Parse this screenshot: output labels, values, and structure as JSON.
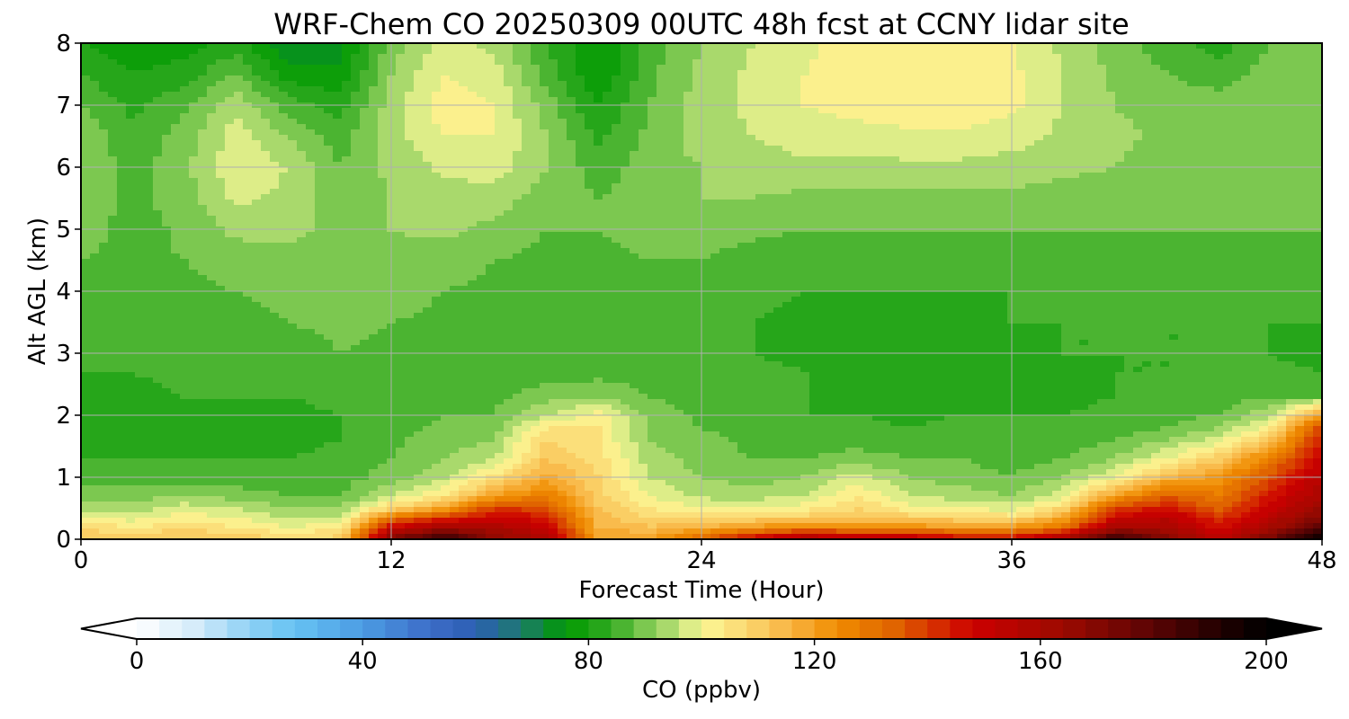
{
  "chart_data": {
    "type": "heatmap",
    "title": "WRF-Chem CO  20250309 00UTC 48h fcst at CCNY lidar site",
    "xlabel": "Forecast Time (Hour)",
    "ylabel": "Alt AGL (km)",
    "xlim": [
      0,
      48
    ],
    "ylim": [
      0,
      8
    ],
    "x_ticks": [
      0,
      12,
      24,
      36,
      48
    ],
    "y_ticks": [
      0,
      1,
      2,
      3,
      4,
      5,
      6,
      7,
      8
    ],
    "grid": true,
    "colorbar": {
      "label": "CO  (ppbv)",
      "range": [
        0,
        200
      ],
      "ticks": [
        0,
        40,
        80,
        120,
        160,
        200
      ],
      "extend": "both",
      "stops": [
        {
          "v": 0,
          "c": "#ffffff"
        },
        {
          "v": 10,
          "c": "#d6ecfa"
        },
        {
          "v": 20,
          "c": "#8fd0f5"
        },
        {
          "v": 28,
          "c": "#66c2f2"
        },
        {
          "v": 40,
          "c": "#4b9ce3"
        },
        {
          "v": 52,
          "c": "#3d6cc7"
        },
        {
          "v": 60,
          "c": "#2b5fb3"
        },
        {
          "v": 68,
          "c": "#1d7a6e"
        },
        {
          "v": 76,
          "c": "#009a00"
        },
        {
          "v": 84,
          "c": "#33aa22"
        },
        {
          "v": 90,
          "c": "#7cc850"
        },
        {
          "v": 96,
          "c": "#bfe27a"
        },
        {
          "v": 100,
          "c": "#fbf896"
        },
        {
          "v": 108,
          "c": "#fbd770"
        },
        {
          "v": 116,
          "c": "#f8b240"
        },
        {
          "v": 124,
          "c": "#f08c00"
        },
        {
          "v": 134,
          "c": "#e06400"
        },
        {
          "v": 148,
          "c": "#cc0000"
        },
        {
          "v": 164,
          "c": "#9c0a00"
        },
        {
          "v": 180,
          "c": "#5a0404"
        },
        {
          "v": 192,
          "c": "#200000"
        },
        {
          "v": 200,
          "c": "#000000"
        }
      ]
    },
    "field": {
      "x": [
        0,
        2,
        4,
        6,
        8,
        10,
        12,
        14,
        16,
        18,
        20,
        22,
        24,
        26,
        28,
        30,
        32,
        34,
        36,
        38,
        40,
        42,
        44,
        46,
        48
      ],
      "y": [
        0,
        0.1,
        0.2,
        0.35,
        0.5,
        0.7,
        1.0,
        1.3,
        1.6,
        1.8,
        2.0,
        2.3,
        2.7,
        3.0,
        3.5,
        4.0,
        4.5,
        5.0,
        5.5,
        6.0,
        6.5,
        7.0,
        7.5,
        8.0
      ],
      "z": [
        [
          112,
          110,
          112,
          110,
          108,
          110,
          170,
          192,
          165,
          160,
          120,
          120,
          135,
          150,
          160,
          155,
          155,
          150,
          150,
          160,
          190,
          170,
          155,
          175,
          200
        ],
        [
          110,
          108,
          110,
          108,
          104,
          106,
          160,
          175,
          165,
          155,
          118,
          116,
          125,
          135,
          145,
          140,
          140,
          135,
          135,
          145,
          175,
          165,
          150,
          165,
          190
        ],
        [
          106,
          104,
          106,
          104,
          100,
          102,
          148,
          160,
          158,
          150,
          116,
          112,
          116,
          120,
          125,
          122,
          122,
          120,
          120,
          130,
          160,
          160,
          145,
          160,
          180
        ],
        [
          100,
          98,
          102,
          100,
          96,
          96,
          130,
          140,
          150,
          145,
          114,
          108,
          108,
          108,
          110,
          112,
          110,
          108,
          106,
          118,
          148,
          155,
          140,
          155,
          170
        ],
        [
          95,
          94,
          98,
          96,
          92,
          92,
          108,
          120,
          140,
          138,
          112,
          104,
          100,
          100,
          102,
          108,
          102,
          100,
          98,
          108,
          140,
          145,
          135,
          150,
          165
        ],
        [
          90,
          90,
          92,
          90,
          88,
          88,
          96,
          104,
          120,
          128,
          110,
          100,
          95,
          94,
          96,
          104,
          96,
          94,
          92,
          98,
          120,
          135,
          128,
          145,
          160
        ],
        [
          86,
          86,
          86,
          86,
          85,
          86,
          90,
          95,
          105,
          118,
          108,
          96,
          92,
          90,
          92,
          98,
          92,
          90,
          88,
          92,
          100,
          115,
          122,
          138,
          155
        ],
        [
          84,
          84,
          84,
          84,
          84,
          85,
          88,
          92,
          96,
          112,
          106,
          94,
          90,
          88,
          88,
          90,
          88,
          88,
          86,
          88,
          92,
          100,
          110,
          128,
          150
        ],
        [
          83,
          83,
          83,
          83,
          83,
          84,
          87,
          90,
          92,
          108,
          104,
          92,
          89,
          87,
          86,
          86,
          86,
          86,
          85,
          86,
          88,
          92,
          98,
          112,
          145
        ],
        [
          83,
          83,
          83,
          83,
          83,
          84,
          86,
          89,
          90,
          104,
          104,
          92,
          88,
          86,
          85,
          85,
          84,
          85,
          85,
          85,
          86,
          88,
          92,
          102,
          140
        ],
        [
          83,
          83,
          83,
          83,
          83,
          84,
          86,
          88,
          88,
          96,
          102,
          90,
          87,
          86,
          84,
          84,
          83,
          84,
          84,
          84,
          85,
          86,
          88,
          95,
          122
        ],
        [
          83,
          83,
          84,
          84,
          84,
          85,
          86,
          87,
          87,
          90,
          92,
          88,
          86,
          85,
          84,
          83,
          82,
          83,
          83,
          83,
          84,
          85,
          86,
          88,
          88
        ],
        [
          84,
          84,
          85,
          85,
          86,
          86,
          86,
          86,
          85,
          86,
          86,
          86,
          85,
          85,
          84,
          82,
          80,
          82,
          83,
          83,
          84,
          84,
          85,
          85,
          84
        ],
        [
          85,
          85,
          86,
          86,
          86,
          88,
          87,
          86,
          85,
          85,
          86,
          86,
          85,
          84,
          83,
          82,
          80,
          82,
          83,
          84,
          84,
          84,
          84,
          84,
          82
        ],
        [
          86,
          86,
          86,
          87,
          88,
          89,
          88,
          87,
          86,
          85,
          85,
          86,
          85,
          84,
          83,
          83,
          82,
          83,
          84,
          84,
          84,
          84,
          84,
          84,
          84
        ],
        [
          87,
          87,
          87,
          88,
          89,
          90,
          90,
          88,
          87,
          86,
          86,
          87,
          86,
          85,
          84,
          84,
          84,
          84,
          84,
          85,
          85,
          85,
          85,
          85,
          85
        ],
        [
          88,
          87,
          88,
          90,
          91,
          91,
          91,
          90,
          88,
          87,
          87,
          88,
          88,
          86,
          86,
          86,
          86,
          86,
          86,
          86,
          86,
          86,
          86,
          86,
          86
        ],
        [
          90,
          86,
          89,
          93,
          93,
          91,
          92,
          93,
          91,
          88,
          88,
          89,
          90,
          89,
          88,
          88,
          88,
          88,
          88,
          88,
          88,
          88,
          88,
          88,
          88
        ],
        [
          91,
          87,
          90,
          97,
          95,
          90,
          92,
          94,
          94,
          90,
          88,
          90,
          92,
          92,
          91,
          91,
          91,
          91,
          91,
          90,
          90,
          89,
          90,
          89,
          89
        ],
        [
          92,
          86,
          91,
          99,
          96,
          88,
          93,
          97,
          98,
          92,
          86,
          90,
          92,
          94,
          95,
          95,
          95,
          95,
          94,
          93,
          92,
          90,
          91,
          90,
          89
        ],
        [
          91,
          85,
          90,
          98,
          92,
          86,
          94,
          100,
          100,
          92,
          83,
          89,
          94,
          96,
          98,
          98,
          99,
          99,
          98,
          95,
          93,
          91,
          91,
          91,
          90
        ],
        [
          88,
          83,
          87,
          95,
          86,
          82,
          94,
          102,
          100,
          90,
          80,
          88,
          94,
          97,
          100,
          102,
          103,
          103,
          101,
          96,
          92,
          90,
          90,
          91,
          90
        ],
        [
          84,
          80,
          82,
          88,
          78,
          77,
          92,
          100,
          98,
          86,
          76,
          87,
          93,
          97,
          100,
          103,
          104,
          104,
          101,
          96,
          91,
          88,
          86,
          90,
          89
        ],
        [
          80,
          77,
          78,
          82,
          72,
          74,
          90,
          97,
          95,
          84,
          76,
          86,
          92,
          96,
          99,
          102,
          103,
          103,
          100,
          95,
          90,
          86,
          82,
          88,
          88
        ]
      ]
    }
  }
}
